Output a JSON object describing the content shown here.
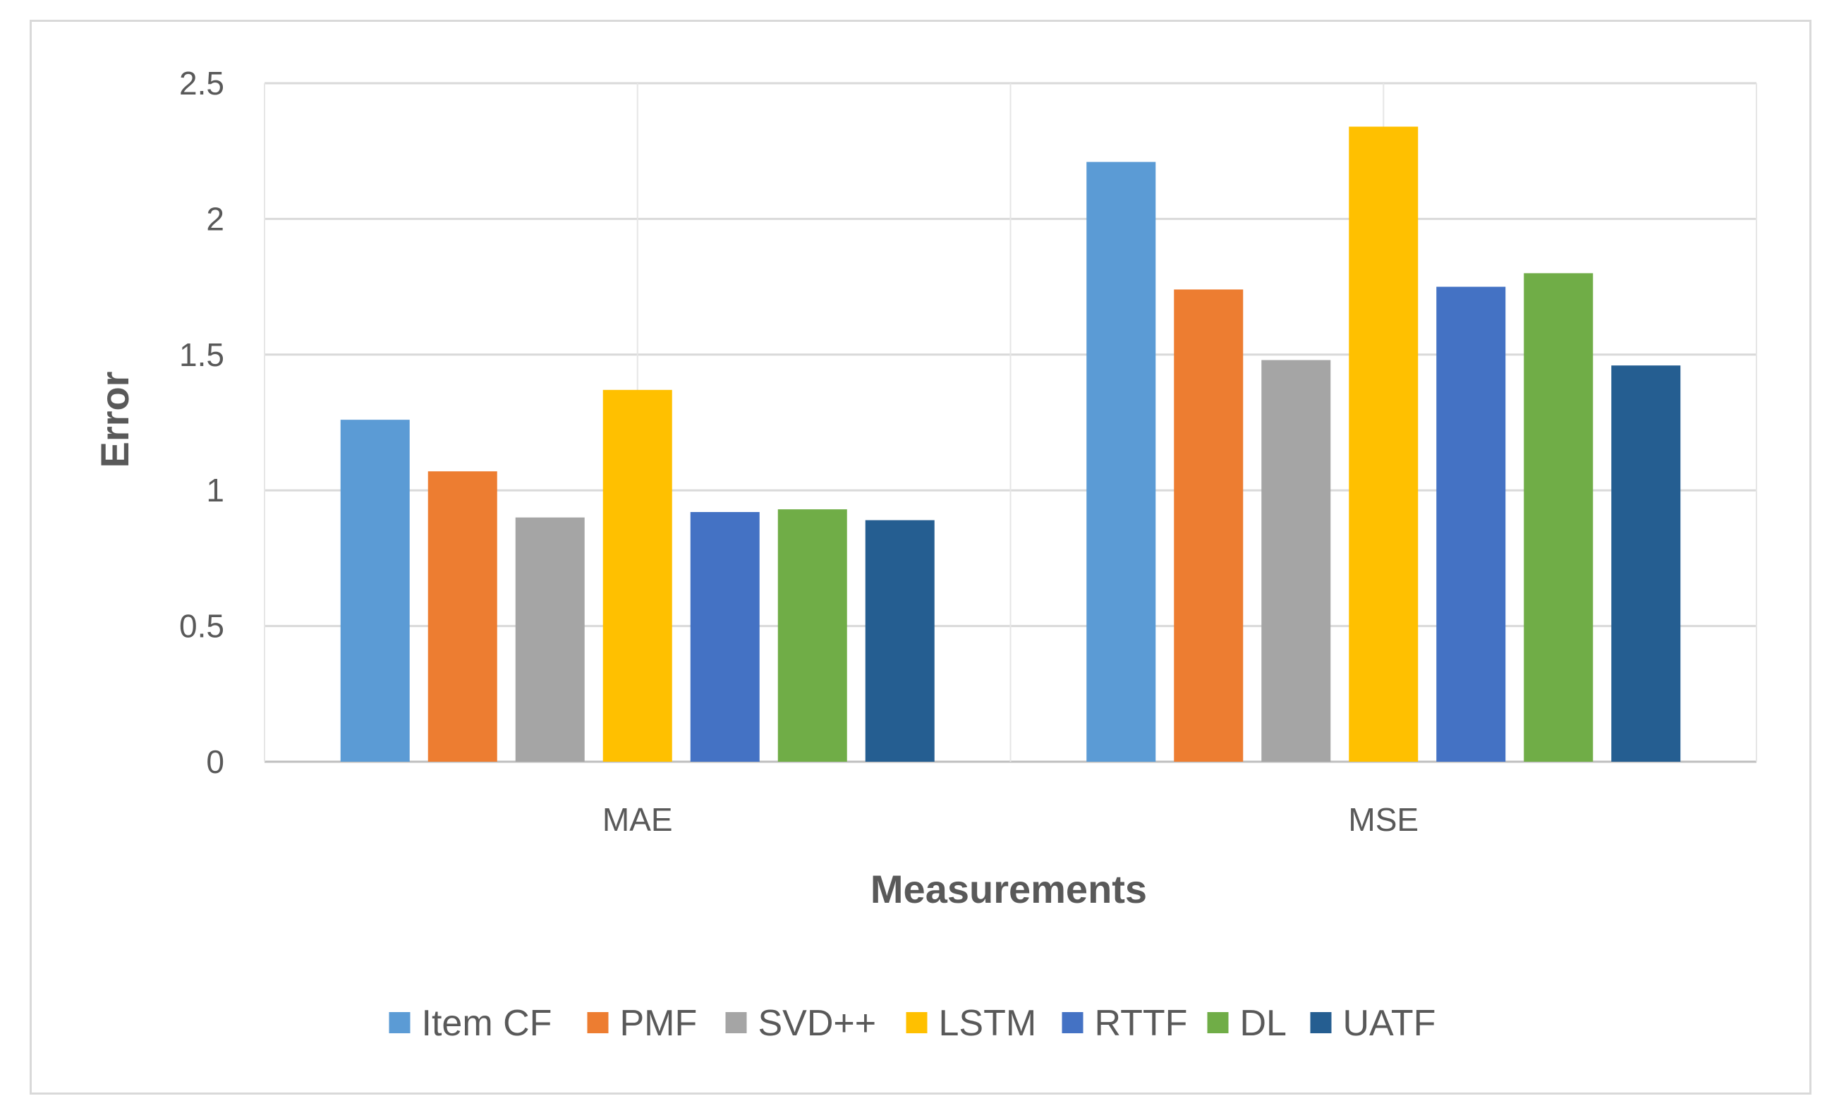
{
  "chart_data": {
    "type": "bar",
    "title": "",
    "xlabel": "Measurements",
    "ylabel": "Error",
    "ylim": [
      0,
      2.5
    ],
    "yticks": [
      "0",
      "0.5",
      "1",
      "1.5",
      "2",
      "2.5"
    ],
    "grid": true,
    "legend_position": "bottom",
    "categories": [
      "MAE",
      "MSE"
    ],
    "series": [
      {
        "name": "Item CF",
        "color": "#5B9BD5",
        "values": [
          1.26,
          2.21
        ]
      },
      {
        "name": "PMF",
        "color": "#ED7D31",
        "values": [
          1.07,
          1.74
        ]
      },
      {
        "name": "SVD++",
        "color": "#A5A5A5",
        "values": [
          0.9,
          1.48
        ]
      },
      {
        "name": "LSTM",
        "color": "#FFC000",
        "values": [
          1.37,
          2.34
        ]
      },
      {
        "name": "RTTF",
        "color": "#4472C4",
        "values": [
          0.92,
          1.75
        ]
      },
      {
        "name": "DL",
        "color": "#70AD47",
        "values": [
          0.93,
          1.8
        ]
      },
      {
        "name": "UATF",
        "color": "#255E91",
        "values": [
          0.89,
          1.46
        ]
      }
    ]
  }
}
